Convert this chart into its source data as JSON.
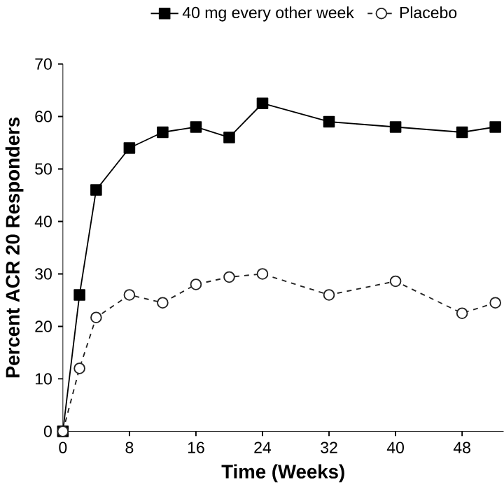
{
  "chart_data": {
    "type": "line",
    "xlabel": "Time (Weeks)",
    "ylabel": "Percent ACR 20 Responders",
    "x": [
      0,
      2,
      4,
      8,
      12,
      16,
      20,
      24,
      32,
      40,
      48,
      52
    ],
    "series": [
      {
        "name": "40 mg every other week",
        "color": "#000000",
        "marker": "square",
        "line_style": "solid",
        "values": [
          0,
          26,
          46,
          54,
          57,
          58,
          56,
          62.5,
          59,
          58,
          57,
          58
        ]
      },
      {
        "name": "Placebo",
        "color": "#222222",
        "marker": "circle",
        "line_style": "dashed",
        "values": [
          0,
          12,
          21.7,
          26,
          24.5,
          28,
          29.4,
          30,
          26,
          28.6,
          22.5,
          24.5
        ]
      }
    ],
    "xlim": [
      0,
      53
    ],
    "ylim": [
      0,
      70
    ],
    "xticks": [
      0,
      8,
      16,
      24,
      32,
      40,
      48
    ],
    "yticks": [
      0,
      10,
      20,
      30,
      40,
      50,
      60,
      70
    ],
    "grid": false,
    "legend": "top"
  }
}
